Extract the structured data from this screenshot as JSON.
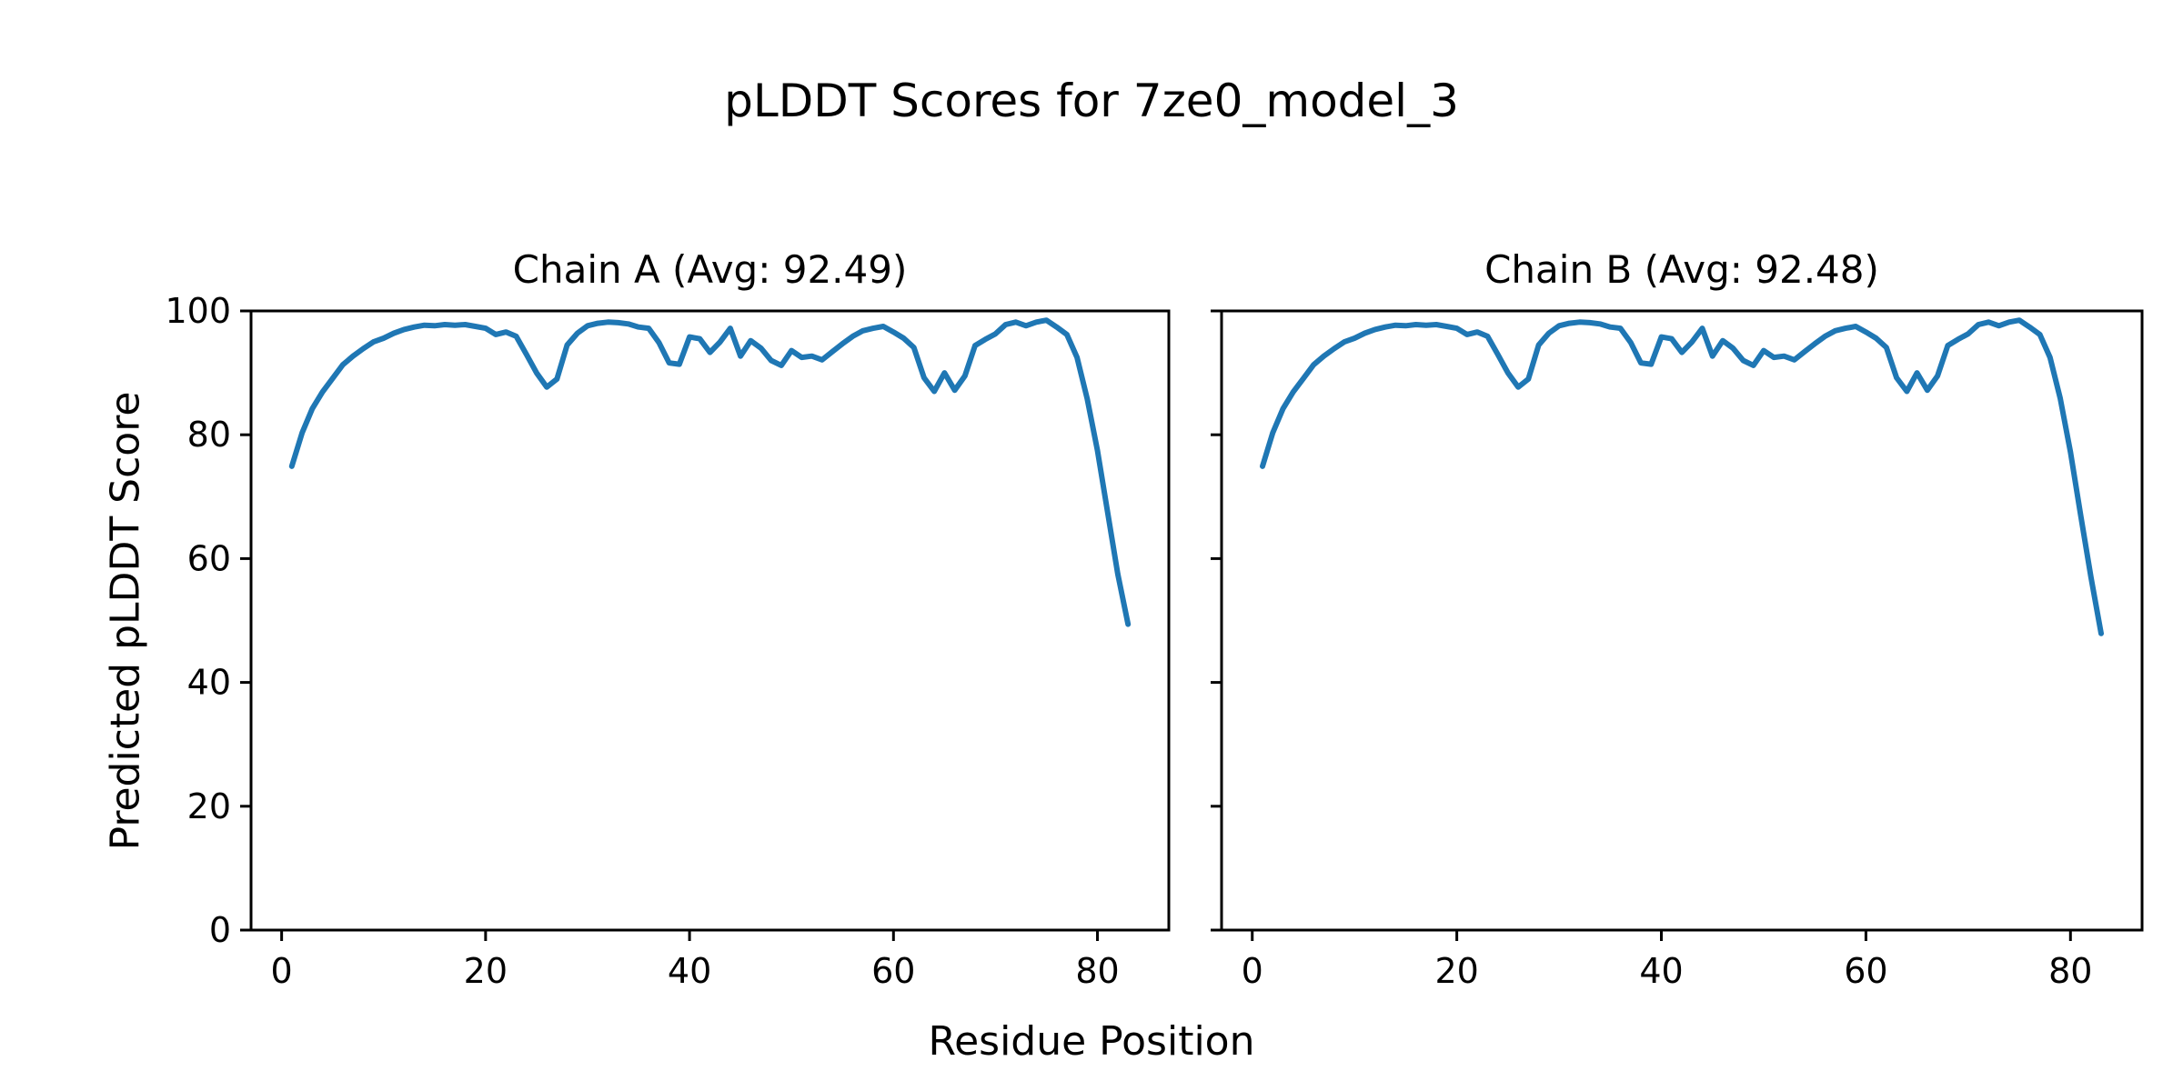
{
  "figure": {
    "suptitle": "pLDDT Scores for 7ze0_model_3",
    "xlabel": "Residue Position",
    "ylabel": "Predicted pLDDT Score"
  },
  "colors": {
    "line": "#1f77b4",
    "axis": "#000000",
    "text": "#000000",
    "background": "#ffffff"
  },
  "chart_data": [
    {
      "type": "line",
      "title": "Chain A (Avg: 92.49)",
      "chain": "A",
      "avg": 92.49,
      "xlabel": "Residue Position",
      "ylabel": "Predicted pLDDT Score",
      "xlim": [
        -3,
        87
      ],
      "ylim": [
        0,
        100
      ],
      "xticks": [
        0,
        20,
        40,
        60,
        80
      ],
      "yticks": [
        0,
        20,
        40,
        60,
        80,
        100
      ],
      "show_ytick_labels": true,
      "grid": false,
      "legend": null,
      "x": [
        1,
        2,
        3,
        4,
        5,
        6,
        7,
        8,
        9,
        10,
        11,
        12,
        13,
        14,
        15,
        16,
        17,
        18,
        19,
        20,
        21,
        22,
        23,
        24,
        25,
        26,
        27,
        28,
        29,
        30,
        31,
        32,
        33,
        34,
        35,
        36,
        37,
        38,
        39,
        40,
        41,
        42,
        43,
        44,
        45,
        46,
        47,
        48,
        49,
        50,
        51,
        52,
        53,
        54,
        55,
        56,
        57,
        58,
        59,
        60,
        61,
        62,
        63,
        64,
        65,
        66,
        67,
        68,
        69,
        70,
        71,
        72,
        73,
        74,
        75,
        76,
        77,
        78,
        79,
        80,
        81,
        82,
        83
      ],
      "values": [
        74.9,
        80.3,
        84.2,
        86.9,
        89.1,
        91.3,
        92.7,
        93.9,
        95.0,
        95.6,
        96.4,
        97.0,
        97.4,
        97.7,
        97.6,
        97.8,
        97.7,
        97.8,
        97.5,
        97.2,
        96.2,
        96.6,
        95.9,
        93.0,
        90.0,
        87.7,
        89.0,
        94.5,
        96.4,
        97.6,
        98.0,
        98.2,
        98.1,
        97.9,
        97.4,
        97.2,
        94.9,
        91.6,
        91.4,
        95.8,
        95.5,
        93.3,
        95.0,
        97.2,
        92.7,
        95.2,
        94.0,
        92.0,
        91.2,
        93.6,
        92.5,
        92.7,
        92.1,
        93.4,
        94.7,
        95.9,
        96.8,
        97.2,
        97.5,
        96.6,
        95.6,
        94.1,
        89.2,
        87.0,
        90.0,
        87.2,
        89.5,
        94.4,
        95.4,
        96.3,
        97.8,
        98.2,
        97.6,
        98.2,
        98.5,
        97.4,
        96.2,
        92.5,
        85.8,
        77.5,
        67.5,
        57.5,
        49.4
      ]
    },
    {
      "type": "line",
      "title": "Chain B (Avg: 92.48)",
      "chain": "B",
      "avg": 92.48,
      "xlabel": "Residue Position",
      "ylabel": "Predicted pLDDT Score",
      "xlim": [
        -3,
        87
      ],
      "ylim": [
        0,
        100
      ],
      "xticks": [
        0,
        20,
        40,
        60,
        80
      ],
      "yticks": [
        0,
        20,
        40,
        60,
        80,
        100
      ],
      "show_ytick_labels": false,
      "grid": false,
      "legend": null,
      "x": [
        1,
        2,
        3,
        4,
        5,
        6,
        7,
        8,
        9,
        10,
        11,
        12,
        13,
        14,
        15,
        16,
        17,
        18,
        19,
        20,
        21,
        22,
        23,
        24,
        25,
        26,
        27,
        28,
        29,
        30,
        31,
        32,
        33,
        34,
        35,
        36,
        37,
        38,
        39,
        40,
        41,
        42,
        43,
        44,
        45,
        46,
        47,
        48,
        49,
        50,
        51,
        52,
        53,
        54,
        55,
        56,
        57,
        58,
        59,
        60,
        61,
        62,
        63,
        64,
        65,
        66,
        67,
        68,
        69,
        70,
        71,
        72,
        73,
        74,
        75,
        76,
        77,
        78,
        79,
        80,
        81,
        82,
        83
      ],
      "values": [
        74.9,
        80.3,
        84.2,
        86.9,
        89.1,
        91.3,
        92.7,
        93.9,
        95.0,
        95.6,
        96.4,
        97.0,
        97.4,
        97.7,
        97.6,
        97.8,
        97.7,
        97.8,
        97.5,
        97.2,
        96.2,
        96.6,
        95.9,
        93.0,
        90.0,
        87.7,
        89.0,
        94.5,
        96.4,
        97.6,
        98.0,
        98.2,
        98.1,
        97.9,
        97.4,
        97.2,
        94.9,
        91.6,
        91.4,
        95.8,
        95.5,
        93.3,
        95.0,
        97.2,
        92.7,
        95.2,
        94.0,
        92.0,
        91.2,
        93.6,
        92.5,
        92.7,
        92.1,
        93.4,
        94.7,
        95.9,
        96.8,
        97.2,
        97.5,
        96.6,
        95.6,
        94.1,
        89.2,
        87.0,
        90.0,
        87.2,
        89.5,
        94.4,
        95.4,
        96.3,
        97.8,
        98.2,
        97.6,
        98.2,
        98.5,
        97.4,
        96.2,
        92.5,
        85.9,
        77.2,
        67.0,
        57.0,
        47.9
      ]
    }
  ]
}
